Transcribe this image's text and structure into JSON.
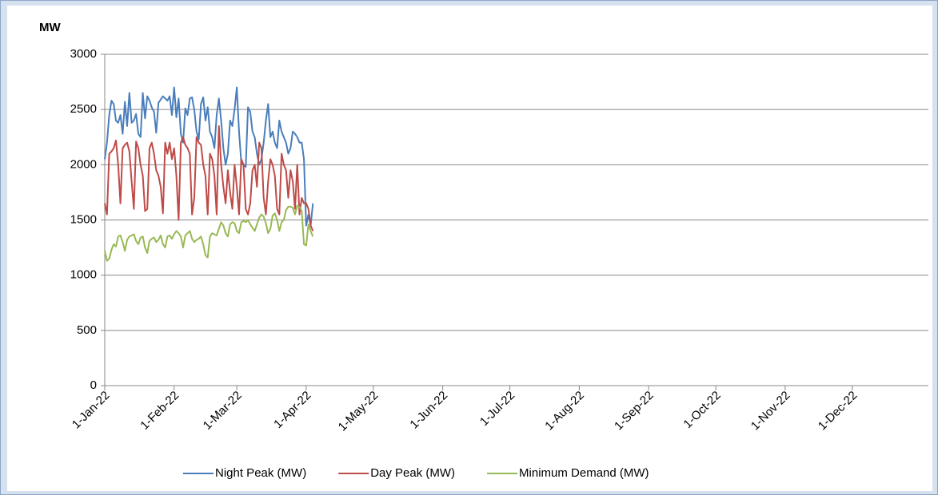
{
  "chart_data": {
    "type": "line",
    "y_label": "MW",
    "x": [
      "2022-01-01",
      "2022-01-02",
      "2022-01-03",
      "2022-01-04",
      "2022-01-05",
      "2022-01-06",
      "2022-01-07",
      "2022-01-08",
      "2022-01-09",
      "2022-01-10",
      "2022-01-11",
      "2022-01-12",
      "2022-01-13",
      "2022-01-14",
      "2022-01-15",
      "2022-01-16",
      "2022-01-17",
      "2022-01-18",
      "2022-01-19",
      "2022-01-20",
      "2022-01-21",
      "2022-01-22",
      "2022-01-23",
      "2022-01-24",
      "2022-01-25",
      "2022-01-26",
      "2022-01-27",
      "2022-01-28",
      "2022-01-29",
      "2022-01-30",
      "2022-01-31",
      "2022-02-01",
      "2022-02-02",
      "2022-02-03",
      "2022-02-04",
      "2022-02-05",
      "2022-02-06",
      "2022-02-07",
      "2022-02-08",
      "2022-02-09",
      "2022-02-10",
      "2022-02-11",
      "2022-02-12",
      "2022-02-13",
      "2022-02-14",
      "2022-02-15",
      "2022-02-16",
      "2022-02-17",
      "2022-02-18",
      "2022-02-19",
      "2022-02-20",
      "2022-02-21",
      "2022-02-22",
      "2022-02-23",
      "2022-02-24",
      "2022-02-25",
      "2022-02-26",
      "2022-02-27",
      "2022-02-28",
      "2022-03-01",
      "2022-03-02",
      "2022-03-03",
      "2022-03-04",
      "2022-03-05",
      "2022-03-06",
      "2022-03-07",
      "2022-03-08",
      "2022-03-09",
      "2022-03-10",
      "2022-03-11",
      "2022-03-12",
      "2022-03-13",
      "2022-03-14",
      "2022-03-15",
      "2022-03-16",
      "2022-03-17",
      "2022-03-18",
      "2022-03-19",
      "2022-03-20",
      "2022-03-21",
      "2022-03-22",
      "2022-03-23",
      "2022-03-24",
      "2022-03-25",
      "2022-03-26",
      "2022-03-27",
      "2022-03-28",
      "2022-03-29",
      "2022-03-30",
      "2022-03-31",
      "2022-04-01",
      "2022-04-02",
      "2022-04-03",
      "2022-04-04"
    ],
    "series": [
      {
        "name": "Night Peak (MW)",
        "color": "#4a7ebb",
        "values": [
          2050,
          2200,
          2450,
          2580,
          2550,
          2400,
          2380,
          2450,
          2280,
          2570,
          2350,
          2650,
          2380,
          2400,
          2460,
          2280,
          2250,
          2650,
          2420,
          2620,
          2580,
          2520,
          2480,
          2290,
          2560,
          2590,
          2620,
          2600,
          2580,
          2620,
          2450,
          2700,
          2430,
          2600,
          2280,
          2200,
          2510,
          2450,
          2600,
          2610,
          2500,
          2300,
          2230,
          2550,
          2610,
          2400,
          2520,
          2300,
          2250,
          2150,
          2450,
          2600,
          2400,
          2150,
          2000,
          2100,
          2400,
          2350,
          2500,
          2700,
          2300,
          2020,
          2000,
          1980,
          2520,
          2480,
          2300,
          2250,
          2100,
          2000,
          2050,
          2200,
          2400,
          2550,
          2250,
          2300,
          2200,
          2150,
          2400,
          2300,
          2250,
          2200,
          2100,
          2150,
          2300,
          2280,
          2250,
          2200,
          2200,
          2050,
          1450,
          1550,
          1450,
          1650
        ]
      },
      {
        "name": "Day Peak (MW)",
        "color": "#be4b48",
        "values": [
          1650,
          1550,
          2100,
          2120,
          2150,
          2220,
          2000,
          1650,
          2150,
          2180,
          2200,
          2120,
          1850,
          1600,
          2210,
          2150,
          2000,
          1900,
          1580,
          1600,
          2150,
          2200,
          2100,
          1950,
          1900,
          1800,
          1560,
          2200,
          2100,
          2200,
          2050,
          2150,
          1900,
          1500,
          2200,
          2250,
          2180,
          2150,
          2100,
          1550,
          1700,
          2250,
          2200,
          2180,
          2000,
          1900,
          1550,
          2100,
          2050,
          1900,
          1550,
          2350,
          2000,
          1800,
          1650,
          1950,
          1750,
          1600,
          2000,
          1800,
          1550,
          2050,
          2000,
          1600,
          1550,
          1650,
          1950,
          2000,
          1800,
          2200,
          2150,
          1700,
          1550,
          1850,
          2050,
          2000,
          1900,
          1600,
          1550,
          2100,
          2000,
          1950,
          1700,
          1950,
          1850,
          1600,
          2000,
          1550,
          1700,
          1650,
          1650,
          1600,
          1450,
          1400
        ]
      },
      {
        "name": "Minimum Demand (MW)",
        "color": "#98b954",
        "values": [
          1220,
          1130,
          1150,
          1230,
          1280,
          1260,
          1350,
          1360,
          1300,
          1220,
          1320,
          1350,
          1360,
          1370,
          1310,
          1280,
          1340,
          1350,
          1250,
          1200,
          1310,
          1330,
          1340,
          1300,
          1320,
          1360,
          1280,
          1250,
          1350,
          1360,
          1330,
          1370,
          1400,
          1380,
          1350,
          1250,
          1360,
          1380,
          1400,
          1330,
          1300,
          1320,
          1330,
          1350,
          1280,
          1180,
          1160,
          1350,
          1380,
          1370,
          1360,
          1420,
          1480,
          1450,
          1380,
          1350,
          1460,
          1480,
          1470,
          1400,
          1380,
          1480,
          1490,
          1480,
          1500,
          1460,
          1430,
          1400,
          1460,
          1520,
          1550,
          1530,
          1470,
          1380,
          1420,
          1540,
          1560,
          1500,
          1400,
          1480,
          1500,
          1590,
          1620,
          1620,
          1610,
          1550,
          1630,
          1620,
          1580,
          1280,
          1270,
          1460,
          1400,
          1350
        ]
      }
    ],
    "ylim": [
      0,
      3000
    ],
    "yticks": [
      0,
      500,
      1000,
      1500,
      2000,
      2500,
      3000
    ],
    "xlim": [
      "2022-01-01",
      "2023-01-04"
    ],
    "xticks": [
      {
        "value": "2022-01-01",
        "label": "1-Jan-22"
      },
      {
        "value": "2022-02-01",
        "label": "1-Feb-22"
      },
      {
        "value": "2022-03-01",
        "label": "1-Mar-22"
      },
      {
        "value": "2022-04-01",
        "label": "1-Apr-22"
      },
      {
        "value": "2022-05-01",
        "label": "1-May-22"
      },
      {
        "value": "2022-06-01",
        "label": "1-Jun-22"
      },
      {
        "value": "2022-07-01",
        "label": "1-Jul-22"
      },
      {
        "value": "2022-08-01",
        "label": "1-Aug-22"
      },
      {
        "value": "2022-09-01",
        "label": "1-Sep-22"
      },
      {
        "value": "2022-10-01",
        "label": "1-Oct-22"
      },
      {
        "value": "2022-11-01",
        "label": "1-Nov-22"
      },
      {
        "value": "2022-12-01",
        "label": "1-Dec-22"
      }
    ],
    "grid": true,
    "legend": "bottom"
  }
}
